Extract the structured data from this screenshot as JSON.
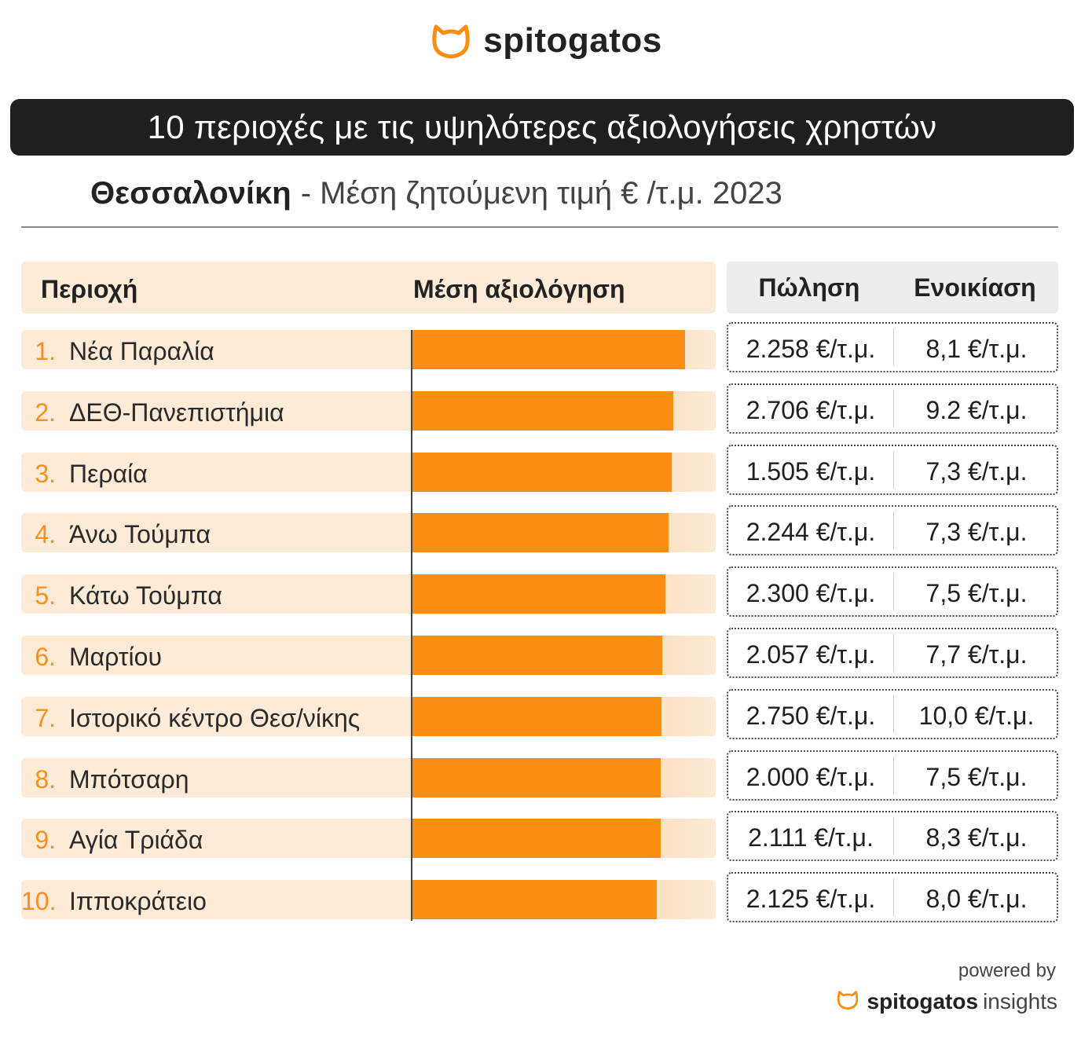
{
  "brand": {
    "logo_text": "spitogatos",
    "accent_color": "#fa8e14",
    "icon": "cat-head-icon"
  },
  "title": "10 περιοχές με τις υψηλότερες αξιολογήσεις χρηστών",
  "subtitle": {
    "city": "Θεσσαλονίκη",
    "rest": "- Μέση ζητούμενη τιμή € /τ.μ. 2023"
  },
  "table": {
    "headers": {
      "area": "Περιοχή",
      "rating": "Μέση αξιολόγηση",
      "sale": "Πώληση",
      "rent": "Ενοικίαση"
    },
    "rows": [
      {
        "rank": "1.",
        "name": "Νέα Παραλία",
        "sale": "2.258 €/τ.μ.",
        "rent": "8,1 €/τ.μ."
      },
      {
        "rank": "2.",
        "name": "ΔΕΘ-Πανεπιστήμια",
        "sale": "2.706 €/τ.μ.",
        "rent": "9.2 €/τ.μ."
      },
      {
        "rank": "3.",
        "name": "Περαία",
        "sale": "1.505 €/τ.μ.",
        "rent": "7,3 €/τ.μ."
      },
      {
        "rank": "4.",
        "name": "Άνω Τούμπα",
        "sale": "2.244 €/τ.μ.",
        "rent": "7,3 €/τ.μ."
      },
      {
        "rank": "5.",
        "name": "Κάτω Τούμπα",
        "sale": "2.300 €/τ.μ.",
        "rent": "7,5 €/τ.μ."
      },
      {
        "rank": "6.",
        "name": "Μαρτίου",
        "sale": "2.057 €/τ.μ.",
        "rent": "7,7 €/τ.μ."
      },
      {
        "rank": "7.",
        "name": "Ιστορικό κέντρο Θεσ/νίκης",
        "sale": "2.750 €/τ.μ.",
        "rent": "10,0 €/τ.μ."
      },
      {
        "rank": "8.",
        "name": "Μπότσαρη",
        "sale": "2.000 €/τ.μ.",
        "rent": "7,5 €/τ.μ."
      },
      {
        "rank": "9.",
        "name": "Αγία Τριάδα",
        "sale": "2.111 €/τ.μ.",
        "rent": "8,3 €/τ.μ."
      },
      {
        "rank": "10.",
        "name": "Ιπποκράτειο",
        "sale": "2.125 €/τ.μ.",
        "rent": "8,0 €/τ.μ."
      }
    ]
  },
  "chart_data": {
    "type": "bar",
    "title": "10 περιοχές με τις υψηλότερες αξιολογήσεις χρηστών",
    "xlabel": "Μέση αξιολόγηση",
    "ylabel": "Περιοχή",
    "categories": [
      "Νέα Παραλία",
      "ΔΕΘ-Πανεπιστήμια",
      "Περαία",
      "Άνω Τούμπα",
      "Κάτω Τούμπα",
      "Μαρτίου",
      "Ιστορικό κέντρο Θεσ/νίκης",
      "Μπότσαρη",
      "Αγία Τριάδα",
      "Ιπποκράτειο"
    ],
    "values": [
      0.9,
      0.86,
      0.855,
      0.845,
      0.835,
      0.825,
      0.82,
      0.818,
      0.818,
      0.805
    ],
    "value_scale": "fraction of maximum possible rating (unlabeled)",
    "grid": false,
    "color": "#fa8e14"
  },
  "footer": {
    "powered_by": "powered by",
    "brand": "spitogatos",
    "suffix": "insights"
  }
}
